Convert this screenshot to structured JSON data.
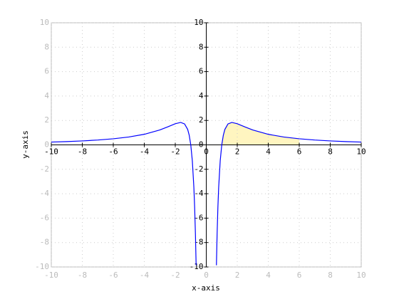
{
  "chart_data": {
    "type": "line",
    "x_label": "x-axis",
    "y_label": "y-axis",
    "x": [
      -10,
      -9,
      -8,
      -7,
      -6,
      -5,
      -4,
      -3,
      -2.5,
      -2,
      -1.65,
      -1.4,
      -1.2,
      -1.1,
      -1,
      -0.9,
      -0.8,
      -0.75,
      -0.7,
      -0.66,
      -0.655,
      null,
      0.655,
      0.66,
      0.7,
      0.75,
      0.8,
      0.9,
      1,
      1.1,
      1.2,
      1.4,
      1.65,
      2,
      2.5,
      3,
      4,
      5,
      6,
      7,
      8,
      9,
      10
    ],
    "series": [
      {
        "color": "#0000ff",
        "values": [
          0.23,
          0.271,
          0.325,
          0.397,
          0.498,
          0.644,
          0.866,
          1.221,
          1.466,
          1.733,
          1.839,
          1.717,
          1.266,
          0.788,
          0,
          -1.301,
          -3.487,
          -5.114,
          -7.279,
          -9.539,
          -9.862,
          null,
          -9.862,
          -9.539,
          -7.279,
          -5.114,
          -3.487,
          -1.301,
          0,
          0.788,
          1.266,
          1.717,
          1.839,
          1.733,
          1.466,
          1.221,
          0.866,
          0.644,
          0.498,
          0.397,
          0.325,
          0.271,
          0.23
        ]
      }
    ],
    "shade": {
      "from": 1,
      "to": 6,
      "color": "#fff5c0"
    },
    "xlim": [
      -10,
      10
    ],
    "ylim": [
      -10,
      10
    ],
    "xticks": [
      -10,
      -8,
      -6,
      -4,
      -2,
      0,
      2,
      4,
      6,
      8,
      10
    ],
    "yticks": [
      -10,
      -8,
      -6,
      -4,
      -2,
      0,
      2,
      4,
      6,
      8,
      10
    ],
    "grid": true
  }
}
